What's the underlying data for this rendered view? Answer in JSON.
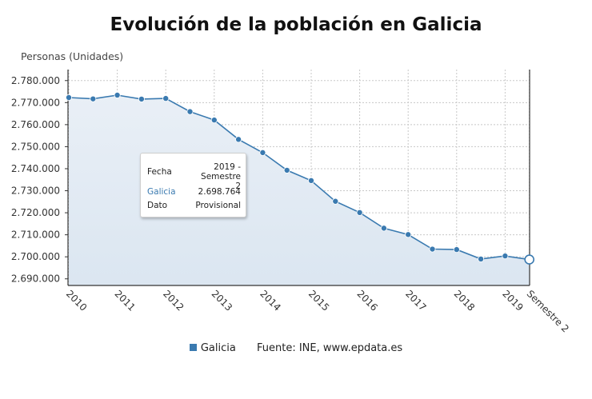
{
  "chart_data": {
    "type": "area",
    "title": "Evolución de la población en Galicia",
    "ylabel": "Personas (Unidades)",
    "xlabel": "",
    "ylim": [
      2687000,
      2785000
    ],
    "yticks": [
      2690000,
      2700000,
      2710000,
      2720000,
      2730000,
      2740000,
      2750000,
      2760000,
      2770000,
      2780000
    ],
    "ytick_labels": [
      "2.690.000",
      "2.700.000",
      "2.710.000",
      "2.720.000",
      "2.730.000",
      "2.740.000",
      "2.750.000",
      "2.760.000",
      "2.770.000",
      "2.780.000"
    ],
    "xtick_labels": [
      "2010",
      "2011",
      "2012",
      "2013",
      "2014",
      "2015",
      "2016",
      "2017",
      "2018",
      "2019",
      "Semestre 2"
    ],
    "grid": true,
    "color": "#3a7ab0",
    "series": [
      {
        "name": "Galicia",
        "values": [
          2772300,
          2771700,
          2773400,
          2771600,
          2771900,
          2765900,
          2762100,
          2753300,
          2747300,
          2739300,
          2734600,
          2725200,
          2720100,
          2713000,
          2710100,
          2703500,
          2703300,
          2699000,
          2700400,
          2698764
        ]
      }
    ]
  },
  "tooltip": {
    "fecha_label": "Fecha",
    "fecha_value": "2019 - Semestre",
    "fecha_value_2": "2",
    "series_label": "Galicia",
    "series_value": "2.698.764",
    "dato_label": "Dato",
    "dato_value": "Provisional"
  },
  "legend": {
    "series_label": "Galicia",
    "source": "Fuente: INE, www.epdata.es"
  }
}
